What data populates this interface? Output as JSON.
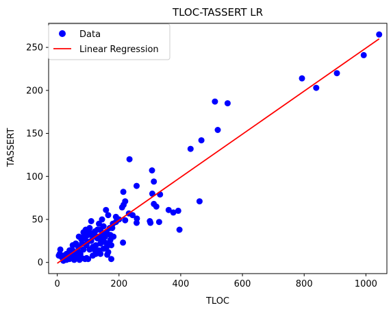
{
  "chart_data": {
    "type": "scatter",
    "title": "TLOC-TASSERT LR",
    "xlabel": "TLOC",
    "ylabel": "TASSERT",
    "xlim": [
      -28,
      1068
    ],
    "ylim": [
      -13,
      278
    ],
    "xticks": [
      0,
      200,
      400,
      600,
      800,
      1000
    ],
    "yticks": [
      0,
      50,
      100,
      150,
      200,
      250
    ],
    "grid": false,
    "legend_position": "top-left",
    "colors": {
      "scatter": "#0000ff",
      "line": "#ff0000"
    },
    "series": [
      {
        "name": "Data",
        "type": "scatter",
        "points": [
          [
            1043,
            265
          ],
          [
            993,
            241
          ],
          [
            906,
            220
          ],
          [
            839,
            203
          ],
          [
            793,
            214
          ],
          [
            552,
            185
          ],
          [
            511,
            187
          ],
          [
            520,
            154
          ],
          [
            467,
            142
          ],
          [
            432,
            132
          ],
          [
            461,
            71
          ],
          [
            396,
            38
          ],
          [
            234,
            120
          ],
          [
            307,
            107
          ],
          [
            313,
            94
          ],
          [
            308,
            80
          ],
          [
            333,
            79
          ],
          [
            257,
            89
          ],
          [
            214,
            82
          ],
          [
            220,
            71
          ],
          [
            215,
            67
          ],
          [
            210,
            64
          ],
          [
            232,
            57
          ],
          [
            244,
            55
          ],
          [
            258,
            51
          ],
          [
            257,
            46
          ],
          [
            300,
            48
          ],
          [
            302,
            46
          ],
          [
            330,
            47
          ],
          [
            313,
            68
          ],
          [
            321,
            65
          ],
          [
            361,
            61
          ],
          [
            376,
            58
          ],
          [
            392,
            60
          ],
          [
            220,
            49
          ],
          [
            213,
            23
          ],
          [
            175,
            20
          ],
          [
            175,
            4
          ],
          [
            162,
            9
          ],
          [
            165,
            12
          ],
          [
            172,
            32
          ],
          [
            158,
            61
          ],
          [
            165,
            55
          ],
          [
            190,
            53
          ],
          [
            178,
            40
          ],
          [
            150,
            42
          ],
          [
            145,
            50
          ],
          [
            140,
            38
          ],
          [
            135,
            45
          ],
          [
            130,
            28
          ],
          [
            120,
            35
          ],
          [
            115,
            30
          ],
          [
            110,
            25
          ],
          [
            105,
            40
          ],
          [
            100,
            32
          ],
          [
            95,
            20
          ],
          [
            90,
            28
          ],
          [
            85,
            15
          ],
          [
            80,
            22
          ],
          [
            75,
            10
          ],
          [
            70,
            12
          ],
          [
            65,
            5
          ],
          [
            60,
            8
          ],
          [
            55,
            3
          ],
          [
            50,
            6
          ],
          [
            45,
            10
          ],
          [
            40,
            4
          ],
          [
            35,
            7
          ],
          [
            30,
            3
          ],
          [
            25,
            5
          ],
          [
            20,
            2
          ],
          [
            15,
            6
          ],
          [
            10,
            15
          ],
          [
            8,
            10
          ],
          [
            5,
            8
          ],
          [
            95,
            5
          ],
          [
            100,
            4
          ],
          [
            90,
            4
          ],
          [
            110,
            48
          ],
          [
            120,
            15
          ],
          [
            125,
            20
          ],
          [
            140,
            22
          ],
          [
            150,
            28
          ],
          [
            160,
            35
          ],
          [
            170,
            40
          ],
          [
            180,
            45
          ],
          [
            190,
            47
          ],
          [
            200,
            50
          ],
          [
            155,
            30
          ],
          [
            145,
            33
          ],
          [
            130,
            38
          ],
          [
            115,
            18
          ],
          [
            105,
            15
          ],
          [
            98,
            24
          ],
          [
            88,
            32
          ],
          [
            78,
            27
          ],
          [
            68,
            18
          ],
          [
            58,
            12
          ],
          [
            48,
            15
          ],
          [
            38,
            9
          ],
          [
            85,
            35
          ],
          [
            92,
            38
          ],
          [
            102,
            36
          ],
          [
            112,
            33
          ],
          [
            122,
            36
          ],
          [
            132,
            30
          ],
          [
            142,
            26
          ],
          [
            152,
            24
          ],
          [
            162,
            22
          ],
          [
            172,
            26
          ],
          [
            182,
            30
          ],
          [
            70,
            30
          ],
          [
            60,
            22
          ],
          [
            50,
            20
          ],
          [
            40,
            14
          ],
          [
            30,
            10
          ],
          [
            20,
            8
          ],
          [
            135,
            14
          ],
          [
            125,
            10
          ],
          [
            115,
            8
          ],
          [
            150,
            16
          ],
          [
            160,
            18
          ],
          [
            140,
            10
          ],
          [
            80,
            5
          ],
          [
            72,
            3
          ]
        ]
      },
      {
        "name": "Linear Regression",
        "type": "line",
        "x": [
          0,
          1043
        ],
        "y": [
          -1,
          260
        ]
      }
    ]
  }
}
